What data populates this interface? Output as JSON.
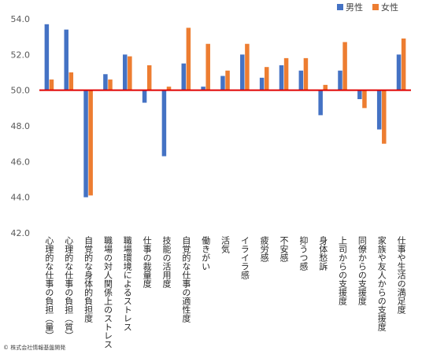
{
  "chart_data": {
    "type": "bar",
    "categories": [
      "心理的な仕事の負担（量）",
      "心理的な仕事の負担（質）",
      "自覚的な身体的負担度",
      "職場の対人関係上のストレス",
      "職場環境によるストレス",
      "仕事の裁量度",
      "技能の活用度",
      "自覚的な仕事の適性度",
      "働きがい",
      "活気",
      "イライラ感",
      "疲労感",
      "不安感",
      "抑うつ感",
      "身体愁訴",
      "上司からの支援度",
      "同僚からの支援度",
      "家族や友人からの支援度",
      "仕事や生活の満足度"
    ],
    "series": [
      {
        "name": "男性",
        "color": "#4472c4",
        "values": [
          53.7,
          53.4,
          44.0,
          50.9,
          52.0,
          49.3,
          46.3,
          51.5,
          50.2,
          50.8,
          52.0,
          50.7,
          51.4,
          51.1,
          48.6,
          51.1,
          49.5,
          47.8,
          52.0
        ]
      },
      {
        "name": "女性",
        "color": "#ed7d31",
        "values": [
          50.6,
          51.0,
          44.1,
          50.6,
          51.9,
          51.4,
          50.2,
          53.5,
          52.6,
          51.1,
          52.6,
          51.3,
          51.8,
          51.8,
          50.3,
          52.7,
          49.0,
          47.0,
          52.9
        ]
      }
    ],
    "yticks": [
      "54.0",
      "52.0",
      "50.0",
      "48.0",
      "46.0",
      "44.0",
      "42.0"
    ],
    "ylim": [
      42,
      54.5
    ],
    "baseline": 50,
    "baseline_color": "#e00000",
    "legend_position": "top-right",
    "grid": false,
    "title": "",
    "xlabel": "",
    "ylabel": ""
  },
  "footer": {
    "copyright": "© 株式会社情報基盤開発"
  }
}
